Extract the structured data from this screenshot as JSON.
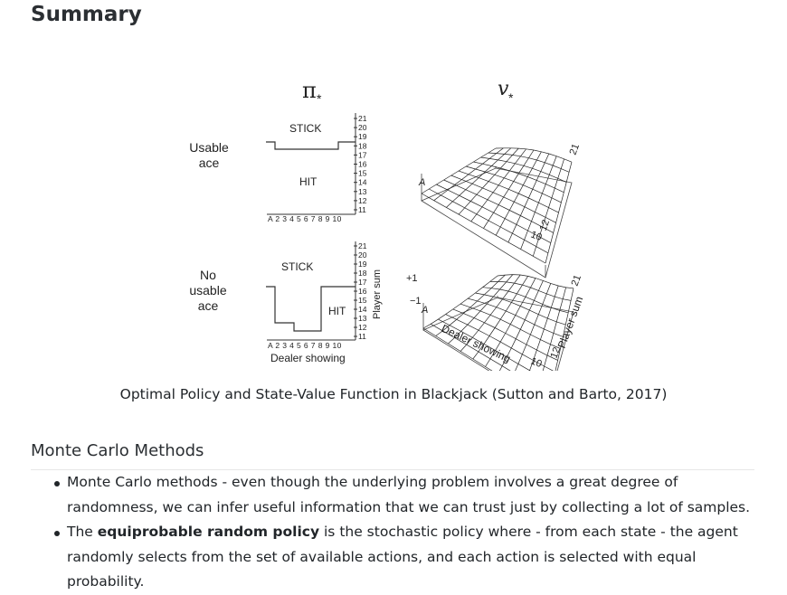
{
  "title": "Summary",
  "figure": {
    "pi_symbol": "π",
    "v_symbol": "v",
    "star": "*",
    "row_labels": {
      "usable_line1": "Usable",
      "usable_line2": "ace",
      "nonusable_line1": "No",
      "nonusable_line2": "usable",
      "nonusable_line3": "ace"
    },
    "region_labels": {
      "stick": "STICK",
      "hit": "HIT"
    },
    "player_sum_ticks": [
      "21",
      "20",
      "19",
      "18",
      "17",
      "16",
      "15",
      "14",
      "13",
      "12",
      "11"
    ],
    "dealer_ticks": "A 2 3 4 5 6 7 8 9 10",
    "player_sum_label": "Player sum",
    "dealer_showing_label": "Dealer showing",
    "surface_labels": {
      "a": "A",
      "ten": "10",
      "twelve": "12",
      "twentyone": "21",
      "plus_one": "+1",
      "minus_one": "−1"
    }
  },
  "caption": "Optimal Policy and State-Value Function in Blackjack (Sutton and Barto, 2017)",
  "section_heading": "Monte Carlo Methods",
  "bullets": {
    "b1": "Monte Carlo methods - even though the underlying problem involves a great degree of randomness, we can infer useful information that we can trust just by collecting a lot of samples.",
    "b2_prefix": "The ",
    "b2_bold": "equiprobable random policy",
    "b2_suffix": " is the stochastic policy where - from each state - the agent randomly selects from the set of available actions, and each action is selected with equal probability."
  }
}
